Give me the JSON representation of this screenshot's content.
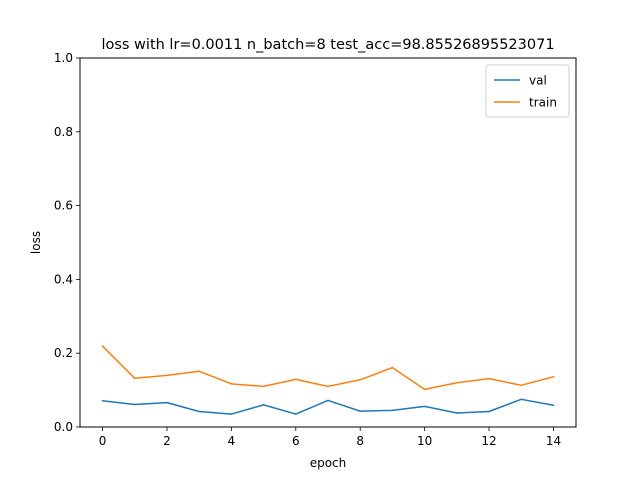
{
  "chart_data": {
    "type": "line",
    "title": "loss with lr=0.0011 n_batch=8 test_acc=98.85526895523071",
    "xlabel": "epoch",
    "ylabel": "loss",
    "xlim": [
      -0.7,
      14.7
    ],
    "ylim": [
      0,
      1.0
    ],
    "xticks": [
      0,
      2,
      4,
      6,
      8,
      10,
      12,
      14
    ],
    "yticks": [
      0.0,
      0.2,
      0.4,
      0.6,
      0.8,
      1.0
    ],
    "x": [
      0,
      1,
      2,
      3,
      4,
      5,
      6,
      7,
      8,
      9,
      10,
      11,
      12,
      13,
      14
    ],
    "series": [
      {
        "name": "val",
        "color": "#1f77b4",
        "values": [
          0.071,
          0.061,
          0.066,
          0.042,
          0.035,
          0.06,
          0.035,
          0.072,
          0.043,
          0.045,
          0.056,
          0.038,
          0.042,
          0.075,
          0.059
        ]
      },
      {
        "name": "train",
        "color": "#ff7f0e",
        "values": [
          0.219,
          0.132,
          0.14,
          0.151,
          0.117,
          0.11,
          0.129,
          0.11,
          0.128,
          0.161,
          0.102,
          0.12,
          0.131,
          0.113,
          0.136
        ]
      }
    ],
    "legend": "top-right",
    "grid": false
  }
}
